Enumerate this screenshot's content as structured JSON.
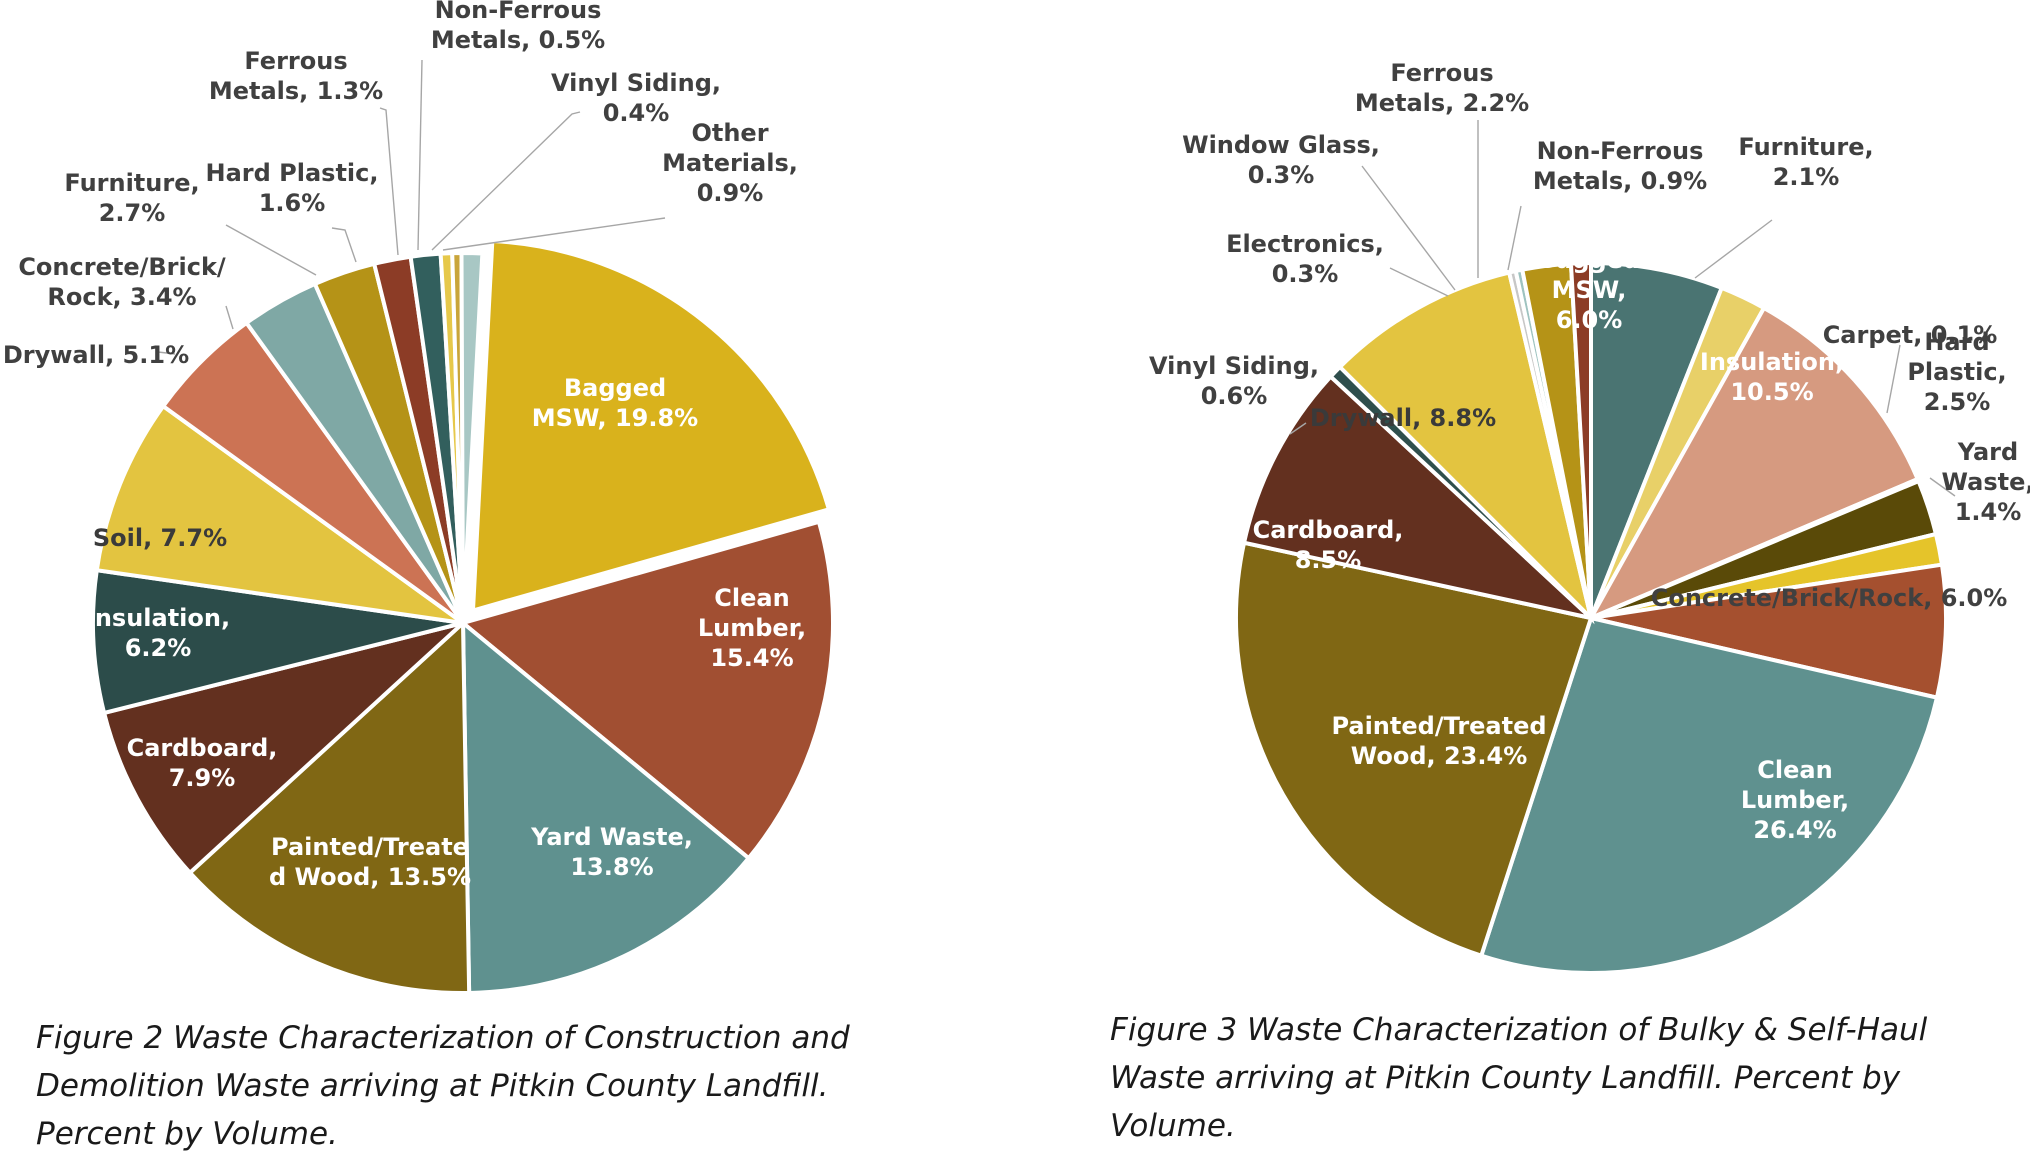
{
  "chart_data": [
    {
      "type": "pie",
      "title": "Figure 2 Waste Characterization of Construction and Demolition Waste arriving at Pitkin County Landfill. Percent by Volume.",
      "caption_lines": [
        "Figure 2 Waste Characterization of Construction and",
        "Demolition Waste arriving at Pitkin County Landfill.",
        "Percent by Volume."
      ],
      "unit": "%",
      "slices": [
        {
          "name": "Bagged MSW",
          "value": 19.8,
          "color": "#d9b21c",
          "label": [
            "Bagged",
            "MSW, 19.8%"
          ]
        },
        {
          "name": "Clean Lumber",
          "value": 15.4,
          "color": "#a14f32",
          "label": [
            "Clean",
            "Lumber,",
            "15.4%"
          ]
        },
        {
          "name": "Yard Waste",
          "value": 13.8,
          "color": "#5f918f",
          "label": [
            "Yard Waste,",
            "13.8%"
          ]
        },
        {
          "name": "Painted/Treated Wood",
          "value": 13.5,
          "color": "#806714",
          "label": [
            "Painted/Treate",
            "d Wood, 13.5%"
          ]
        },
        {
          "name": "Cardboard",
          "value": 7.9,
          "color": "#63301f",
          "label": [
            "Cardboard,",
            "7.9%"
          ]
        },
        {
          "name": "Insulation",
          "value": 6.2,
          "color": "#2c4c4a",
          "label": [
            "Insulation,",
            "6.2%"
          ]
        },
        {
          "name": "Soil",
          "value": 7.7,
          "color": "#e3c440",
          "label": [
            "Soil, 7.7%"
          ]
        },
        {
          "name": "Drywall",
          "value": 5.1,
          "color": "#cc7354",
          "label": [
            "Drywall, 5.1%"
          ]
        },
        {
          "name": "Concrete/Brick/Rock",
          "value": 3.4,
          "color": "#7fa8a5",
          "label": [
            "Concrete/Brick/",
            "Rock, 3.4%"
          ]
        },
        {
          "name": "Furniture",
          "value": 2.7,
          "color": "#b59317",
          "label": [
            "Furniture,",
            "2.7%"
          ]
        },
        {
          "name": "Hard Plastic",
          "value": 1.6,
          "color": "#8c3c26",
          "label": [
            "Hard Plastic,",
            "1.6%"
          ]
        },
        {
          "name": "Ferrous Metals",
          "value": 1.3,
          "color": "#325f5d",
          "label": [
            "Ferrous",
            "Metals, 1.3%"
          ]
        },
        {
          "name": "Non-Ferrous Metals",
          "value": 0.5,
          "color": "#e6c84a",
          "label": [
            "Non-Ferrous",
            "Metals, 0.5%"
          ]
        },
        {
          "name": "Vinyl Siding",
          "value": 0.4,
          "color": "#c9a53a",
          "label": [
            "Vinyl Siding,",
            "0.4%"
          ]
        },
        {
          "name": "Other Materials",
          "value": 0.9,
          "color": "#a8c7c4",
          "label": [
            "Other",
            "Materials,",
            "0.9%"
          ]
        }
      ]
    },
    {
      "type": "pie",
      "title": "Figure 3 Waste Characterization of Bulky & Self-Haul Waste arriving at Pitkin County Landfill. Percent by Volume.",
      "caption_lines": [
        "Figure 3 Waste Characterization of Bulky & Self-Haul",
        "Waste arriving at Pitkin County Landfill. Percent by",
        "Volume."
      ],
      "unit": "%",
      "slices": [
        {
          "name": "Bagged MSW",
          "value": 6.0,
          "color": "#4a7472",
          "label": [
            "Bagged",
            "MSW,",
            "6.0%"
          ]
        },
        {
          "name": "Furniture",
          "value": 2.1,
          "color": "#e8d068",
          "label": [
            "Furniture,",
            "2.1%"
          ]
        },
        {
          "name": "Insulation",
          "value": 10.5,
          "color": "#d69a80",
          "label": [
            "Insulation,",
            "10.5%"
          ]
        },
        {
          "name": "Carpet",
          "value": 0.1,
          "color": "#e0c7a0",
          "label": [
            "Carpet, 0.1%"
          ]
        },
        {
          "name": "Hard Plastic",
          "value": 2.5,
          "color": "#5a4a08",
          "label": [
            "Hard",
            "Plastic,",
            "2.5%"
          ]
        },
        {
          "name": "Yard Waste",
          "value": 1.4,
          "color": "#e5c42a",
          "label": [
            "Yard",
            "Waste,",
            "1.4%"
          ]
        },
        {
          "name": "Concrete/Brick/Rock",
          "value": 6.0,
          "color": "#a5502f",
          "label": [
            "Concrete/Brick/Rock, 6.0%"
          ]
        },
        {
          "name": "Clean Lumber",
          "value": 26.4,
          "color": "#5f918f",
          "label": [
            "Clean",
            "Lumber,",
            "26.4%"
          ]
        },
        {
          "name": "Painted/Treated Wood",
          "value": 23.4,
          "color": "#806714",
          "label": [
            "Painted/Treated",
            "Wood, 23.4%"
          ]
        },
        {
          "name": "Cardboard",
          "value": 8.5,
          "color": "#63301f",
          "label": [
            "Cardboard,",
            "8.5%"
          ]
        },
        {
          "name": "Vinyl Siding",
          "value": 0.6,
          "color": "#2f4f4d",
          "label": [
            "Vinyl Siding,",
            "0.6%"
          ]
        },
        {
          "name": "Drywall",
          "value": 8.8,
          "color": "#e3c440",
          "label": [
            "Drywall, 8.8%"
          ]
        },
        {
          "name": "Electronics",
          "value": 0.3,
          "color": "#c7c7c7",
          "label": [
            "Electronics,",
            "0.3%"
          ]
        },
        {
          "name": "Window Glass",
          "value": 0.3,
          "color": "#9ec3c0",
          "label": [
            "Window Glass,",
            "0.3%"
          ]
        },
        {
          "name": "Ferrous Metals",
          "value": 2.2,
          "color": "#b59317",
          "label": [
            "Ferrous",
            "Metals, 2.2%"
          ]
        },
        {
          "name": "Non-Ferrous Metals",
          "value": 0.9,
          "color": "#8c3c26",
          "label": [
            "Non-Ferrous",
            "Metals, 0.9%"
          ]
        }
      ]
    }
  ]
}
